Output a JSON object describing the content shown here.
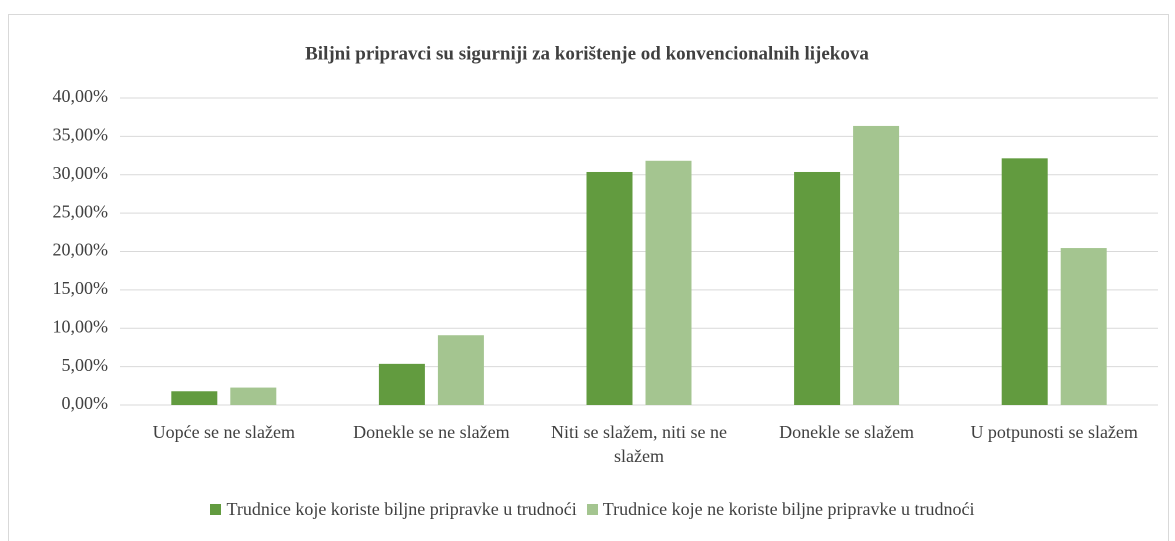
{
  "chart_data": {
    "type": "bar",
    "title": "Biljni pripravci su sigurniji za korištenje od konvencionalnih lijekova",
    "categories": [
      "Uopće se ne slažem",
      "Donekle se ne slažem",
      "Niti se slažem, niti se ne slažem",
      "Donekle se slažem",
      "U potpunosti se slažem"
    ],
    "series": [
      {
        "name": "Trudnice koje koriste biljne pripravke u trudnoći",
        "color": "#629b3f",
        "values": [
          1.79,
          5.36,
          30.36,
          30.36,
          32.14
        ]
      },
      {
        "name": "Trudnice koje ne koriste biljne pripravke u trudnoći",
        "color": "#a4c590",
        "values": [
          2.27,
          9.09,
          31.82,
          36.36,
          20.45
        ]
      }
    ],
    "ylim": [
      0,
      40
    ],
    "yticks": [
      {
        "value": 0,
        "label": "0,00%"
      },
      {
        "value": 5,
        "label": "5,00%"
      },
      {
        "value": 10,
        "label": "10,00%"
      },
      {
        "value": 15,
        "label": "15,00%"
      },
      {
        "value": 20,
        "label": "20,00%"
      },
      {
        "value": 25,
        "label": "25,00%"
      },
      {
        "value": 30,
        "label": "30,00%"
      },
      {
        "value": 35,
        "label": "35,00%"
      },
      {
        "value": 40,
        "label": "40,00%"
      }
    ],
    "grid": true,
    "legend": "bottom"
  }
}
